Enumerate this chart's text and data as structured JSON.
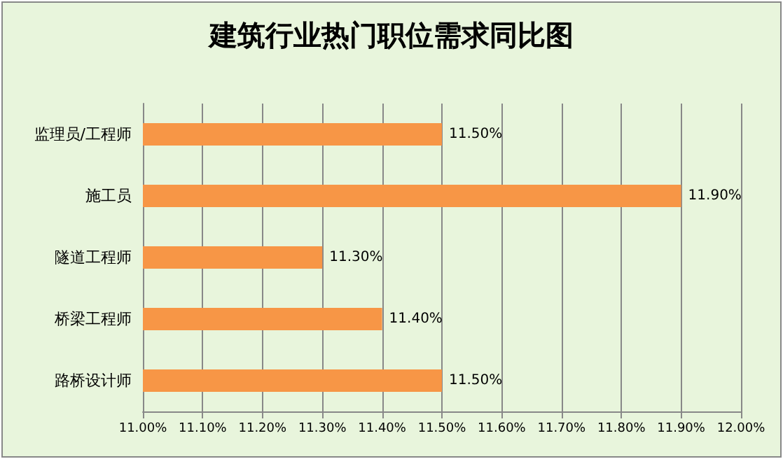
{
  "chart_data": {
    "type": "bar",
    "orientation": "horizontal",
    "title": "建筑行业热门职位需求同比图",
    "categories": [
      "监理员/工程师",
      "施工员",
      "隧道工程师",
      "桥梁工程师",
      "路桥设计师"
    ],
    "values": [
      11.5,
      11.9,
      11.3,
      11.4,
      11.5
    ],
    "value_labels": [
      "11.50%",
      "11.90%",
      "11.30%",
      "11.40%",
      "11.50%"
    ],
    "color": "#f79646",
    "xlim": [
      11,
      12
    ],
    "xticks": [
      {
        "value": 11,
        "label": "11.00%"
      },
      {
        "value": 11.1,
        "label": "11.10%"
      },
      {
        "value": 11.2,
        "label": "11.20%"
      },
      {
        "value": 11.3,
        "label": "11.30%"
      },
      {
        "value": 11.4,
        "label": "11.40%"
      },
      {
        "value": 11.5,
        "label": "11.50%"
      },
      {
        "value": 11.6,
        "label": "11.60%"
      },
      {
        "value": 11.7,
        "label": "11.70%"
      },
      {
        "value": 11.8,
        "label": "11.80%"
      },
      {
        "value": 11.9,
        "label": "11.90%"
      },
      {
        "value": 12,
        "label": "12.00%"
      }
    ],
    "grid": "x"
  }
}
